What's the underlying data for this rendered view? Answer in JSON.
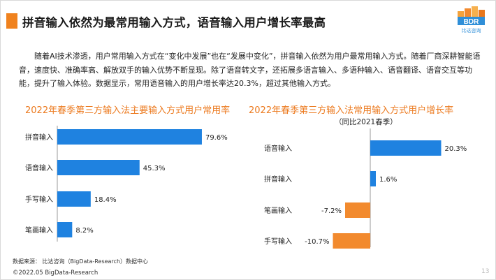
{
  "slide": {
    "title": "拼音输入依然为最常用输入方式，语音输入用户增长率最高",
    "logo_text": "BDR",
    "logo_sub": "比达咨询",
    "intro": "随着AI技术渗透，用户常用输入方式在“变化中发展”也在“发展中变化”，拼音输入依然为用户最常用输入方式。随着厂商深耕智能语音，速度快、准确率高、解放双手的输入优势不断显现。除了语音转文字，还拓展多语言输入、多语种输入、语音翻译、语音交互等功能，提升了输入体验。数据显示，常用语音输入的用户增长率达20.3%，超过其他输入方式。",
    "footnote": "数据来源： 比达咨询（BigData-Research）数据中心",
    "copyright": "©2022.05 BigData-Research",
    "page_number": "13"
  },
  "colors": {
    "blue": "#1f82e0",
    "orange": "#f28a2e",
    "accent": "#ec7a1f"
  },
  "chart_data": [
    {
      "type": "bar",
      "orientation": "horizontal",
      "title": "2022年春季第三方输入法主要输入方式用户常用率",
      "categories": [
        "拼音输入",
        "语音输入",
        "手写输入",
        "笔画输入"
      ],
      "values": [
        79.6,
        45.3,
        18.4,
        8.2
      ],
      "value_labels": [
        "79.6%",
        "45.3%",
        "18.4%",
        "8.2%"
      ],
      "unit": "%",
      "color": "#1f82e0"
    },
    {
      "type": "bar",
      "orientation": "horizontal",
      "title": "2022年春季第三方输入法常用输入方式用户增长率",
      "subtitle": "（同比2021春季）",
      "categories": [
        "语音输入",
        "拼音输入",
        "笔画输入",
        "手写输入"
      ],
      "values": [
        20.3,
        1.6,
        -7.2,
        -10.7
      ],
      "value_labels": [
        "20.3%",
        "1.6%",
        "-7.2%",
        "-10.7%"
      ],
      "unit": "%",
      "positive_color": "#1f82e0",
      "negative_color": "#f28a2e"
    }
  ]
}
